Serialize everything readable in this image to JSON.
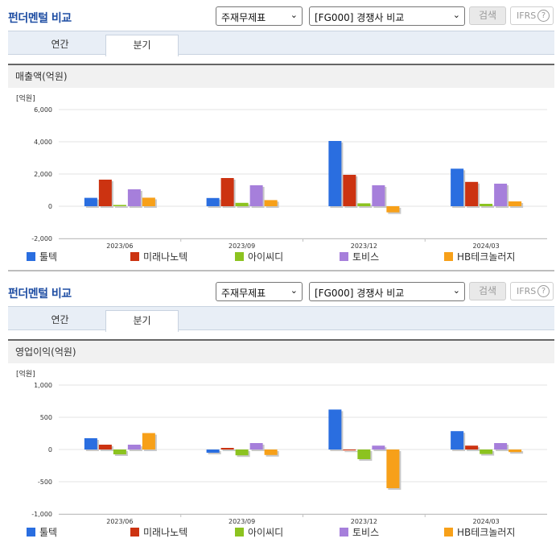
{
  "panels": [
    {
      "title": "펀더멘털 비교",
      "select1": "주재무제표",
      "select2": "[FG000] 경쟁사 비교",
      "search_label": "검색",
      "ifrs_label": "IFRS",
      "ifrs_help": "?",
      "tabs": [
        "연간",
        "분기"
      ],
      "chart_title": "매출액(억원)"
    },
    {
      "title": "펀더멘털 비교",
      "select1": "주재무제표",
      "select2": "[FG000] 경쟁사 비교",
      "search_label": "검색",
      "ifrs_label": "IFRS",
      "ifrs_help": "?",
      "tabs": [
        "연간",
        "분기"
      ],
      "chart_title": "영업이익(억원)"
    }
  ],
  "chart_data": [
    {
      "type": "bar",
      "title": "매출액(억원)",
      "unit_label": "[억원]",
      "categories": [
        "2023/06",
        "2023/09",
        "2023/12",
        "2024/03"
      ],
      "ylim": [
        -2000,
        6000
      ],
      "yticks": [
        -2000,
        0,
        2000,
        4000,
        6000
      ],
      "ytick_labels": [
        "-2,000",
        "0",
        "2,000",
        "4,000",
        "6,000"
      ],
      "grid": true,
      "legend_position": "bottom",
      "series": [
        {
          "name": "툴텍",
          "color": "#2a6ee0",
          "values": [
            520,
            510,
            4050,
            2330
          ]
        },
        {
          "name": "미래나노텍",
          "color": "#cc3311",
          "values": [
            1650,
            1750,
            1950,
            1510
          ]
        },
        {
          "name": "아이씨디",
          "color": "#8cc320",
          "values": [
            80,
            210,
            180,
            150
          ]
        },
        {
          "name": "토비스",
          "color": "#a67fdb",
          "values": [
            1050,
            1300,
            1300,
            1400
          ]
        },
        {
          "name": "HB테크놀러지",
          "color": "#f7a019",
          "values": [
            530,
            380,
            -380,
            300
          ]
        }
      ]
    },
    {
      "type": "bar",
      "title": "영업이익(억원)",
      "unit_label": "[억원]",
      "categories": [
        "2023/06",
        "2023/09",
        "2023/12",
        "2024/03"
      ],
      "ylim": [
        -1000,
        1000
      ],
      "yticks": [
        -1000,
        -500,
        0,
        500,
        1000
      ],
      "ytick_labels": [
        "-1,000",
        "-500",
        "0",
        "500",
        "1,000"
      ],
      "grid": true,
      "legend_position": "bottom",
      "series": [
        {
          "name": "툴텍",
          "color": "#2a6ee0",
          "values": [
            175,
            -50,
            620,
            285
          ]
        },
        {
          "name": "미래나노텍",
          "color": "#cc3311",
          "values": [
            75,
            25,
            -15,
            60
          ]
        },
        {
          "name": "아이씨디",
          "color": "#8cc320",
          "values": [
            -75,
            -90,
            -150,
            -70
          ]
        },
        {
          "name": "토비스",
          "color": "#a67fdb",
          "values": [
            75,
            100,
            60,
            100
          ]
        },
        {
          "name": "HB테크놀러지",
          "color": "#f7a019",
          "values": [
            255,
            -85,
            -600,
            -40
          ]
        }
      ]
    }
  ]
}
